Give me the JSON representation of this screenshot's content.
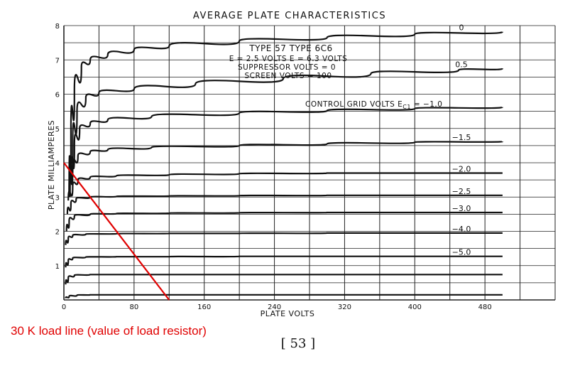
{
  "chart_data": {
    "type": "line",
    "title": "AVERAGE PLATE CHARACTERISTICS",
    "xlabel": "PLATE VOLTS",
    "ylabel": "PLATE MILLIAMPERES",
    "xlim": [
      0,
      560
    ],
    "ylim": [
      0,
      8
    ],
    "x_ticks": [
      "0",
      "80",
      "160",
      "240",
      "320",
      "400",
      "480"
    ],
    "y_ticks": [
      "1",
      "2",
      "3",
      "4",
      "5",
      "6",
      "7",
      "8"
    ],
    "grid": true,
    "legend_title": "CONTROL GRID VOLTS E",
    "legend_title_sub": "C1",
    "legend_title_suffix": " = −1.0",
    "tube_info": {
      "line1": "TYPE 57     TYPE 6C6",
      "line2": "E  = 2.5 VOLTS    E  = 6.3 VOLTS",
      "line3": "SUPPRESSOR VOLTS = 0",
      "line4": "SCREEN VOLTS = 100"
    },
    "series": [
      {
        "name": "0",
        "x": [
          6,
          8,
          12,
          20,
          30,
          50,
          80,
          120,
          200,
          300,
          400,
          500
        ],
        "y": [
          3.0,
          4.8,
          6.1,
          6.8,
          7.0,
          7.15,
          7.3,
          7.4,
          7.55,
          7.65,
          7.75,
          7.82
        ]
      },
      {
        "name": "0.5",
        "x": [
          7,
          10,
          15,
          25,
          40,
          80,
          150,
          250,
          350,
          450,
          500
        ],
        "y": [
          3.0,
          4.5,
          5.5,
          5.9,
          6.05,
          6.15,
          6.3,
          6.45,
          6.6,
          6.7,
          6.75
        ]
      },
      {
        "name": "−1.0",
        "x": [
          8,
          12,
          18,
          30,
          50,
          100,
          200,
          300,
          400,
          500
        ],
        "y": [
          3.5,
          4.5,
          5.0,
          5.15,
          5.25,
          5.35,
          5.45,
          5.52,
          5.58,
          5.62
        ]
      },
      {
        "name": "−1.5",
        "x": [
          6,
          10,
          16,
          30,
          50,
          100,
          200,
          300,
          400,
          500
        ],
        "y": [
          3.1,
          3.9,
          4.2,
          4.32,
          4.38,
          4.45,
          4.5,
          4.55,
          4.6,
          4.62
        ]
      },
      {
        "name": "−2.0",
        "x": [
          5,
          10,
          16,
          30,
          60,
          120,
          200,
          300,
          400,
          500
        ],
        "y": [
          2.9,
          3.3,
          3.5,
          3.58,
          3.62,
          3.65,
          3.68,
          3.7,
          3.7,
          3.7
        ]
      },
      {
        "name": "−2.5",
        "x": [
          4,
          8,
          14,
          30,
          60,
          120,
          200,
          300,
          400,
          500
        ],
        "y": [
          2.5,
          2.8,
          2.95,
          3.0,
          3.02,
          3.03,
          3.04,
          3.05,
          3.05,
          3.05
        ]
      },
      {
        "name": "−3.0",
        "x": [
          3,
          6,
          12,
          30,
          60,
          120,
          200,
          300,
          400,
          500
        ],
        "y": [
          2.0,
          2.3,
          2.45,
          2.5,
          2.52,
          2.53,
          2.54,
          2.55,
          2.55,
          2.55
        ]
      },
      {
        "name": "−4.0",
        "x": [
          2,
          5,
          10,
          25,
          60,
          120,
          200,
          300,
          400,
          500
        ],
        "y": [
          1.6,
          1.8,
          1.88,
          1.92,
          1.93,
          1.94,
          1.94,
          1.95,
          1.95,
          1.95
        ]
      },
      {
        "name": "−5.0",
        "x": [
          2,
          5,
          10,
          25,
          60,
          120,
          200,
          300,
          400,
          500
        ],
        "y": [
          0.95,
          1.15,
          1.22,
          1.25,
          1.26,
          1.26,
          1.27,
          1.27,
          1.27,
          1.27
        ]
      },
      {
        "name": "",
        "x": [
          2,
          5,
          12,
          30,
          60,
          120,
          200,
          300,
          400,
          500
        ],
        "y": [
          0.45,
          0.65,
          0.72,
          0.74,
          0.74,
          0.74,
          0.74,
          0.74,
          0.74,
          0.74
        ]
      },
      {
        "name": "",
        "x": [
          2,
          6,
          15,
          30,
          60,
          120,
          200,
          300,
          400,
          500
        ],
        "y": [
          0.05,
          0.1,
          0.14,
          0.15,
          0.15,
          0.15,
          0.15,
          0.15,
          0.15,
          0.15
        ]
      }
    ],
    "load_line": {
      "x": [
        0,
        120
      ],
      "y": [
        4.0,
        0
      ],
      "color": "#e00000"
    },
    "annotation": "30 K load line (value of load resistor)",
    "page_number": "[ 53 ]"
  }
}
